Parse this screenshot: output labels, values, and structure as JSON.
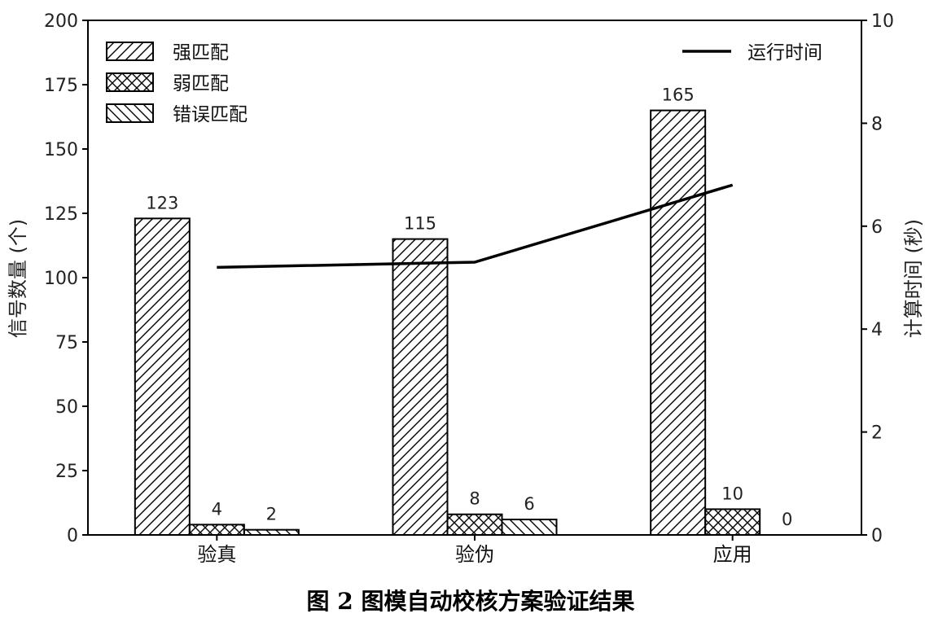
{
  "chart_data": {
    "type": "bar",
    "categories": [
      "验真",
      "验伪",
      "应用"
    ],
    "series": [
      {
        "name": "强匹配",
        "values": [
          123,
          115,
          165
        ],
        "pattern": "diag-fwd"
      },
      {
        "name": "弱匹配",
        "values": [
          4,
          8,
          10
        ],
        "pattern": "cross"
      },
      {
        "name": "错误匹配",
        "values": [
          2,
          6,
          0
        ],
        "pattern": "diag-back"
      }
    ],
    "line_series": {
      "name": "运行时间",
      "values": [
        5.2,
        5.3,
        6.8
      ],
      "color": "#000000"
    },
    "ylabel": "信号数量 (个)",
    "y2label": "计算时间 (秒)",
    "ylim": [
      0,
      200
    ],
    "y2lim": [
      0,
      10
    ],
    "yticks": [
      0,
      25,
      50,
      75,
      100,
      125,
      150,
      175,
      200
    ],
    "y2ticks": [
      0,
      2,
      4,
      6,
      8,
      10
    ],
    "grid": false,
    "legend_bars_position": "top-left",
    "legend_line_position": "top-right"
  },
  "caption": "图 2   图模自动校核方案验证结果"
}
